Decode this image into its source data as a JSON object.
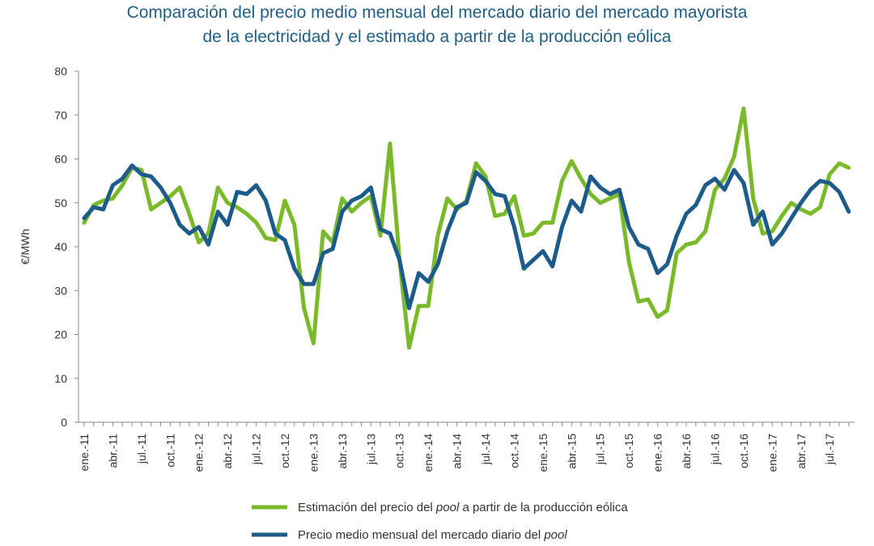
{
  "chart_data": {
    "type": "line",
    "title": "Comparación del precio medio mensual del mercado diario del mercado mayorista",
    "subtitle": "de la electricidad y el estimado a partir de la producción eólica",
    "ylabel": "€/MWh",
    "xlabel": "",
    "ylim": [
      0,
      80
    ],
    "yticks": [
      0,
      10,
      20,
      30,
      40,
      50,
      60,
      70,
      80
    ],
    "grid": false,
    "x_tick_labels": [
      "ene.-11",
      "abr.-11",
      "jul.-11",
      "oct.-11",
      "ene.-12",
      "abr.-12",
      "jul.-12",
      "oct.-12",
      "ene.-13",
      "abr.-13",
      "jul.-13",
      "oct.-13",
      "ene.-14",
      "abr.-14",
      "jul.-14",
      "oct.-14",
      "ene.-15",
      "abr.-15",
      "jul.-15",
      "oct.-15",
      "ene.-16",
      "abr.-16",
      "jul.-16",
      "oct.-16",
      "ene.-17",
      "abr.-17",
      "jul.-17"
    ],
    "n_points": 81,
    "series": [
      {
        "name": "Estimación del precio del pool a partir de la producción eólica",
        "color": "#7ab929",
        "values": [
          45.5,
          49.5,
          50.5,
          51,
          54,
          58,
          57.5,
          48.5,
          50,
          51.5,
          53.5,
          47.5,
          41,
          43,
          53.5,
          50,
          49,
          47.5,
          45.5,
          42,
          41.5,
          50.5,
          45,
          26,
          18,
          43.5,
          41,
          51,
          48,
          50,
          51.5,
          42.5,
          63.5,
          37,
          17,
          26.5,
          26.5,
          42.5,
          51,
          48.5,
          50.5,
          59,
          56,
          47,
          47.5,
          51.5,
          42.5,
          43,
          45.5,
          45.5,
          55,
          59.5,
          55.5,
          52,
          50,
          51,
          52,
          36.5,
          27.5,
          28,
          24,
          25.5,
          38.5,
          40.5,
          41,
          43.5,
          53,
          55.5,
          60.5,
          71.5,
          51,
          43,
          43.5,
          47,
          50,
          48.5,
          47.5,
          49,
          56.5,
          59,
          58
        ]
      },
      {
        "name": "Precio medio mensual del mercado diario del pool",
        "color": "#1d5c8a",
        "values": [
          46.5,
          49,
          48.5,
          54,
          55.5,
          58.5,
          56.5,
          56,
          53.5,
          50,
          45,
          43,
          44.5,
          40.5,
          48,
          45,
          52.5,
          52,
          54,
          50.5,
          43,
          41.5,
          35,
          31.5,
          31.5,
          38.5,
          39.5,
          48,
          50.5,
          51.5,
          53.5,
          44,
          43,
          37,
          26,
          34,
          32,
          36,
          43.5,
          49,
          50,
          57,
          55,
          52,
          51.5,
          44.5,
          35,
          37,
          39,
          35.5,
          44.5,
          50.5,
          48,
          56,
          53.5,
          52,
          53,
          44.5,
          40.5,
          39.5,
          34,
          36,
          42.5,
          47.5,
          49.5,
          54,
          55.5,
          53,
          57.5,
          54.5,
          45,
          48,
          40.5,
          43,
          46.5,
          50,
          53,
          55,
          54.5,
          52.5,
          48
        ]
      }
    ],
    "legend": {
      "position": "bottom",
      "entries": [
        {
          "prefix": "Estimación del precio del ",
          "italic": "pool",
          "suffix": " a partir de la producción eólica",
          "color": "#7ab929"
        },
        {
          "prefix": "Precio medio mensual del mercado diario del ",
          "italic": "pool",
          "suffix": "",
          "color": "#1d5c8a"
        }
      ]
    }
  }
}
